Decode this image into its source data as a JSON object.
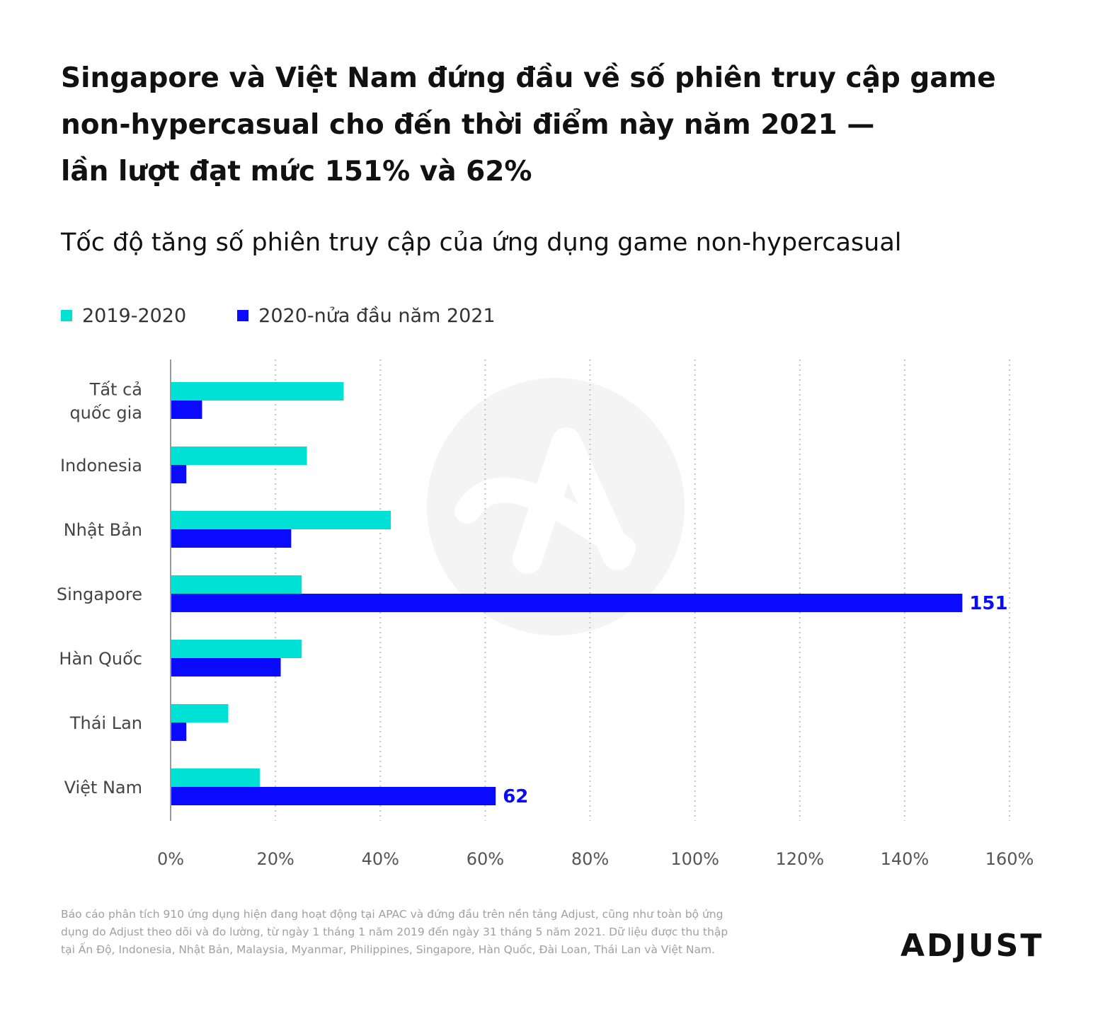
{
  "title_lines": [
    "Singapore và Việt Nam đứng đầu về số phiên truy cập game",
    "non-hypercasual cho đến thời điểm này năm 2021 —",
    "lần lượt đạt mức 151% và 62%"
  ],
  "subtitle": "Tốc độ tăng số phiên truy cập của ứng dụng game non-hypercasual",
  "legend": [
    {
      "label": "2019-2020",
      "color": "#00e1d5"
    },
    {
      "label": "2020-nửa đầu năm 2021",
      "color": "#0a0aff"
    }
  ],
  "chart_data": {
    "type": "bar",
    "orientation": "horizontal",
    "categories": [
      [
        "Tất cả",
        "quốc gia"
      ],
      [
        "Indonesia"
      ],
      [
        "Nhật Bản"
      ],
      [
        "Singapore"
      ],
      [
        "Hàn Quốc"
      ],
      [
        "Thái Lan"
      ],
      [
        "Việt Nam"
      ]
    ],
    "series": [
      {
        "name": "2019-2020",
        "color": "#00e1d5",
        "values": [
          33,
          26,
          42,
          25,
          25,
          11,
          17
        ]
      },
      {
        "name": "2020-nửa đầu năm 2021",
        "color": "#0a0aff",
        "values": [
          6,
          3,
          23,
          151,
          21,
          3,
          62
        ]
      }
    ],
    "data_labels": [
      {
        "series": 1,
        "index": 3,
        "text": "151"
      },
      {
        "series": 1,
        "index": 6,
        "text": "62"
      }
    ],
    "xlim": [
      0,
      160
    ],
    "xticks": [
      0,
      20,
      40,
      60,
      80,
      100,
      120,
      140,
      160
    ],
    "xtick_labels": [
      "0%",
      "20%",
      "40%",
      "60%",
      "80%",
      "100%",
      "120%",
      "140%",
      "160%"
    ],
    "grid": "vertical dotted",
    "legend_position": "top-left"
  },
  "footnote_lines": [
    "Báo cáo phân tích 910 ứng dụng hiện đang hoạt động tại APAC và đứng đầu trên nền tảng Adjust, cũng như toàn bộ ứng",
    "dụng do Adjust theo dõi và đo lường, từ ngày 1 tháng 1 năm 2019 đến ngày 31 tháng 5 năm 2021. Dữ liệu được thu thập",
    "tại Ấn Độ, Indonesia, Nhật Bản, Malaysia, Myanmar, Philippines, Singapore, Hàn Quốc, Đài Loan, Thái Lan và Việt Nam."
  ],
  "brand": "ADJUST"
}
